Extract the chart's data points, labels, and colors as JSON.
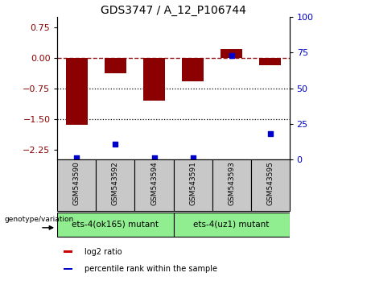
{
  "title": "GDS3747 / A_12_P106744",
  "samples": [
    "GSM543590",
    "GSM543592",
    "GSM543594",
    "GSM543591",
    "GSM543593",
    "GSM543595"
  ],
  "log2_ratio": [
    -1.65,
    -0.38,
    -1.05,
    -0.58,
    0.22,
    -0.18
  ],
  "percentile_rank": [
    1,
    11,
    1,
    1,
    73,
    18
  ],
  "ylim_left": [
    -2.5,
    1.0
  ],
  "yticks_left": [
    0.75,
    0,
    -0.75,
    -1.5,
    -2.25
  ],
  "yticks_right": [
    100,
    75,
    50,
    25,
    0
  ],
  "ylim_right": [
    0,
    100
  ],
  "bar_color": "#8B0000",
  "dot_color": "#0000CD",
  "group1_label": "ets-4(ok165) mutant",
  "group2_label": "ets-4(uz1) mutant",
  "group1_indices": [
    0,
    1,
    2
  ],
  "group2_indices": [
    3,
    4,
    5
  ],
  "genotype_label": "genotype/variation",
  "legend_items": [
    "log2 ratio",
    "percentile rank within the sample"
  ],
  "legend_colors": [
    "#CC0000",
    "#0000CD"
  ],
  "sample_box_color": "#C8C8C8",
  "group_green_color": "#90EE90",
  "bar_width": 0.55,
  "title_fontsize": 10,
  "tick_fontsize": 8
}
